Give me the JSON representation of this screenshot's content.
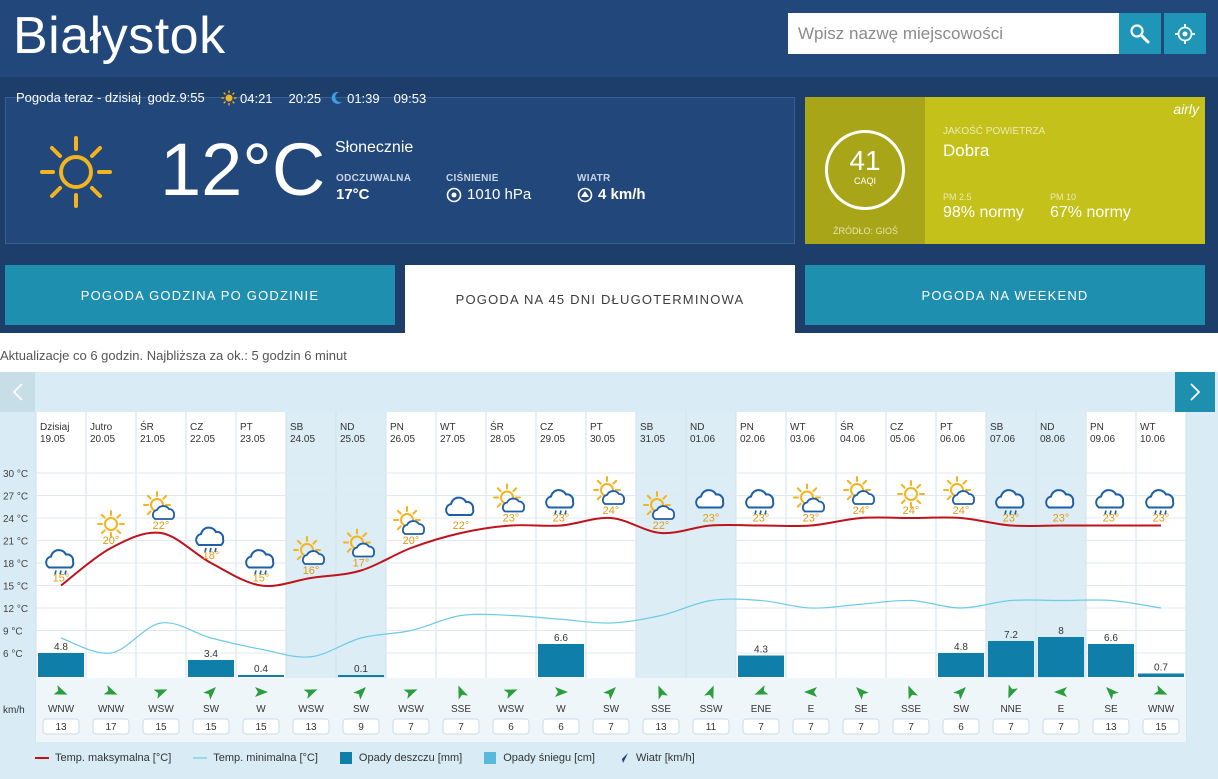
{
  "header": {
    "city": "Białystok",
    "search_placeholder": "Wpisz nazwę miejscowości",
    "search_icon": "search-icon",
    "locate_icon": "crosshair-icon"
  },
  "now": {
    "title": "Pogoda teraz - dzisiaj",
    "time": "godz.9:55",
    "sunrise": "04:21",
    "sunset": "20:25",
    "moonrise": "01:39",
    "moonset": "09:53",
    "temp": "12°C",
    "condition": "Słonecznie",
    "feels_label": "ODCZUWALNA",
    "feels_value": "17°C",
    "pressure_label": "CIŚNIENIE",
    "pressure_value": "1010 hPa",
    "wind_label": "WIATR",
    "wind_value": "4 km/h"
  },
  "air": {
    "caqi": "41",
    "caqi_label": "CAQI",
    "source": "ŹRÓDŁO: GIOŚ",
    "title": "JAKOŚĆ POWIETRZA",
    "quality": "Dobra",
    "pm25_label": "PM 2.5",
    "pm25_value": "98% normy",
    "pm10_label": "PM 10",
    "pm10_value": "67% normy",
    "brand": "airly"
  },
  "tabs": [
    {
      "label": "POGODA GODZINA PO GODZINIE",
      "active": false
    },
    {
      "label": "POGODA NA 45 DNI DŁUGOTERMINOWA",
      "active": true
    },
    {
      "label": "POGODA NA WEEKEND",
      "active": false
    }
  ],
  "update_text": "Aktualizacje co 6 godzin. Najbliższa za ok.: 5 godzin 6 minut",
  "legend": {
    "max": "Temp. maksymalna [°C]",
    "min": "Temp. minimalna [°C]",
    "rain": "Opady deszczu [mm]",
    "snow": "Opady śniegu [cm]",
    "wind": "Wiatr [km/h]"
  },
  "chart_data": {
    "type": "line",
    "wind_axis_label": "km/h",
    "y_ticks": [
      "30 °C",
      "27 °C",
      "24 °C",
      "21 °C",
      "18 °C",
      "15 °C",
      "12 °C",
      "9 °C",
      "6 °C"
    ],
    "ylim": [
      6,
      30
    ],
    "days": [
      {
        "day": "Dzisiaj",
        "date": "19.05",
        "weekend": false,
        "icon": "rain-cloud",
        "tmax_label": "15°",
        "tmax": 15,
        "tmin": 8,
        "rain": 4.8,
        "wind_dir": "WNW",
        "wind_speed": 13
      },
      {
        "day": "Jutro",
        "date": "20.05",
        "weekend": false,
        "icon": "sun",
        "tmax_label": "20°",
        "tmax": 20,
        "tmin": 6,
        "rain": null,
        "wind_dir": "WNW",
        "wind_speed": 17
      },
      {
        "day": "ŚR",
        "date": "21.05",
        "weekend": false,
        "icon": "sun-cloud",
        "tmax_label": "22°",
        "tmax": 22,
        "tmin": 10,
        "rain": null,
        "wind_dir": "WSW",
        "wind_speed": 15
      },
      {
        "day": "CZ",
        "date": "22.05",
        "weekend": false,
        "icon": "rain-cloud",
        "tmax_label": "18°",
        "tmax": 18,
        "tmin": 8,
        "rain": 3.4,
        "wind_dir": "SW",
        "wind_speed": 15
      },
      {
        "day": "PT",
        "date": "23.05",
        "weekend": false,
        "icon": "rain-cloud",
        "tmax_label": "15°",
        "tmax": 15,
        "tmin": 6.5,
        "rain": 0.4,
        "wind_dir": "W",
        "wind_speed": 15
      },
      {
        "day": "SB",
        "date": "24.05",
        "weekend": true,
        "icon": "sun-cloud",
        "tmax_label": "16°",
        "tmax": 16,
        "tmin": 5.5,
        "rain": null,
        "wind_dir": "WSW",
        "wind_speed": 13
      },
      {
        "day": "ND",
        "date": "25.05",
        "weekend": true,
        "icon": "sun-cloud",
        "tmax_label": "17°",
        "tmax": 17,
        "tmin": 8,
        "rain": 0.1,
        "wind_dir": "SW",
        "wind_speed": 9
      },
      {
        "day": "PN",
        "date": "26.05",
        "weekend": false,
        "icon": "sun-cloud",
        "tmax_label": "20°",
        "tmax": 20,
        "tmin": 9,
        "rain": null,
        "wind_dir": "WSW",
        "wind_speed": 7
      },
      {
        "day": "WT",
        "date": "27.05",
        "weekend": false,
        "icon": "cloud",
        "tmax_label": "22°",
        "tmax": 22,
        "tmin": 11,
        "rain": null,
        "wind_dir": "SSE",
        "wind_speed": 7
      },
      {
        "day": "ŚR",
        "date": "28.05",
        "weekend": false,
        "icon": "sun-cloud",
        "tmax_label": "23°",
        "tmax": 23,
        "tmin": 11,
        "rain": null,
        "wind_dir": "WSW",
        "wind_speed": 6
      },
      {
        "day": "CZ",
        "date": "29.05",
        "weekend": false,
        "icon": "rain-cloud",
        "tmax_label": "23°",
        "tmax": 23,
        "tmin": 10.5,
        "rain": 6.6,
        "wind_dir": "W",
        "wind_speed": 6
      },
      {
        "day": "PT",
        "date": "30.05",
        "weekend": false,
        "icon": "sun-cloud",
        "tmax_label": "24°",
        "tmax": 24,
        "tmin": 10,
        "rain": null,
        "wind_dir": "SW",
        "wind_speed": 7
      },
      {
        "day": "SB",
        "date": "31.05",
        "weekend": true,
        "icon": "sun-cloud",
        "tmax_label": "22°",
        "tmax": 22,
        "tmin": 11,
        "rain": null,
        "wind_dir": "SSE",
        "wind_speed": 13
      },
      {
        "day": "ND",
        "date": "01.06",
        "weekend": true,
        "icon": "cloud",
        "tmax_label": "23°",
        "tmax": 23,
        "tmin": 13,
        "rain": null,
        "wind_dir": "SSW",
        "wind_speed": 11
      },
      {
        "day": "PN",
        "date": "02.06",
        "weekend": false,
        "icon": "rain-cloud",
        "tmax_label": "23°",
        "tmax": 23,
        "tmin": 13,
        "rain": 4.3,
        "wind_dir": "ENE",
        "wind_speed": 7
      },
      {
        "day": "WT",
        "date": "03.06",
        "weekend": false,
        "icon": "sun-cloud",
        "tmax_label": "23°",
        "tmax": 23,
        "tmin": 12,
        "rain": null,
        "wind_dir": "E",
        "wind_speed": 7
      },
      {
        "day": "ŚR",
        "date": "04.06",
        "weekend": false,
        "icon": "sun-cloud",
        "tmax_label": "24°",
        "tmax": 24,
        "tmin": 12.5,
        "rain": null,
        "wind_dir": "SE",
        "wind_speed": 7
      },
      {
        "day": "CZ",
        "date": "05.06",
        "weekend": false,
        "icon": "sun",
        "tmax_label": "24°",
        "tmax": 24,
        "tmin": 13,
        "rain": null,
        "wind_dir": "SSE",
        "wind_speed": 7
      },
      {
        "day": "PT",
        "date": "06.06",
        "weekend": false,
        "icon": "sun-cloud",
        "tmax_label": "24°",
        "tmax": 24,
        "tmin": 12,
        "rain": 4.8,
        "wind_dir": "SW",
        "wind_speed": 6
      },
      {
        "day": "SB",
        "date": "07.06",
        "weekend": true,
        "icon": "rain-cloud",
        "tmax_label": "23°",
        "tmax": 23,
        "tmin": 13,
        "rain": 7.2,
        "wind_dir": "NNE",
        "wind_speed": 7
      },
      {
        "day": "ND",
        "date": "08.06",
        "weekend": true,
        "icon": "cloud",
        "tmax_label": "23°",
        "tmax": 23,
        "tmin": 13,
        "rain": 8.0,
        "wind_dir": "E",
        "wind_speed": 7
      },
      {
        "day": "PN",
        "date": "09.06",
        "weekend": false,
        "icon": "rain-cloud",
        "tmax_label": "23°",
        "tmax": 23,
        "tmin": 13,
        "rain": 6.6,
        "wind_dir": "SE",
        "wind_speed": 13
      },
      {
        "day": "WT",
        "date": "10.06",
        "weekend": false,
        "icon": "rain-cloud",
        "tmax_label": "23°",
        "tmax": 23,
        "tmin": 12,
        "rain": 0.7,
        "wind_dir": "WNW",
        "wind_speed": 15
      }
    ]
  }
}
